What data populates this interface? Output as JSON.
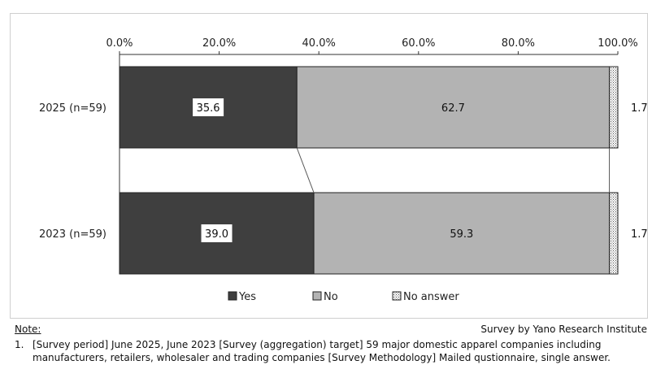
{
  "chart_data": {
    "type": "bar",
    "orientation": "horizontal",
    "stacked": true,
    "categories": [
      "2025 (n=59)",
      "2023 (n=59)"
    ],
    "series": [
      {
        "name": "Yes",
        "values": [
          35.6,
          39.0
        ],
        "color": "#3f3f3f"
      },
      {
        "name": "No",
        "values": [
          62.7,
          59.3
        ],
        "color": "#b3b3b3"
      },
      {
        "name": "No answer",
        "values": [
          1.7,
          1.7
        ],
        "color": "#ffffff",
        "pattern": "dots"
      }
    ],
    "xlim": [
      0,
      100
    ],
    "xticks": [
      "0.0%",
      "20.0%",
      "40.0%",
      "60.0%",
      "80.0%",
      "100.0%"
    ],
    "xaxis_position": "top",
    "legend_position": "bottom",
    "grid": false,
    "value_labels": [
      [
        "35.6",
        "62.7",
        "1.7"
      ],
      [
        "39.0",
        "59.3",
        "1.7"
      ]
    ]
  },
  "footer": {
    "note_title": "Note:",
    "source": "Survey by Yano Research Institute",
    "note_number": "1.",
    "note_text": "[Survey period] June 2025, June 2023 [Survey (aggregation) target] 59 major domestic apparel companies including manufacturers, retailers, wholesaler and trading companies [Survey Methodology] Mailed qustionnaire, single answer."
  }
}
